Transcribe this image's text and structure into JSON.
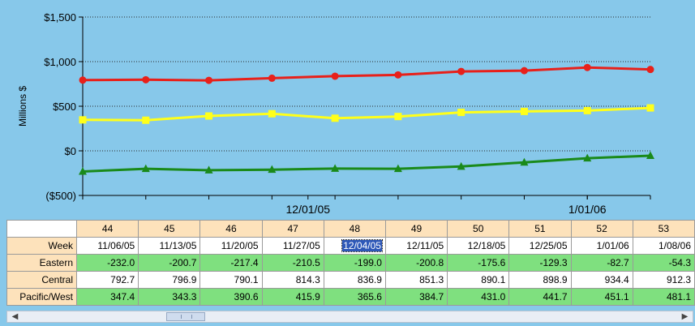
{
  "chart_data": {
    "type": "line",
    "ylabel": "Millions $",
    "ylim": [
      -500,
      1500
    ],
    "yticks": [
      -500,
      0,
      500,
      1000,
      1500
    ],
    "ytick_labels": [
      "($500)",
      "$0",
      "$500",
      "$1,000",
      "$1,500"
    ],
    "grid": true,
    "x": [
      "11/06/05",
      "11/13/05",
      "11/20/05",
      "11/27/05",
      "12/04/05",
      "12/11/05",
      "12/18/05",
      "12/25/05",
      "1/01/06",
      "1/08/06"
    ],
    "x_labels": [
      {
        "label": "12/01/05",
        "at": "12/01/05"
      },
      {
        "label": "1/01/06",
        "at": "1/01/06"
      }
    ],
    "series": [
      {
        "name": "Eastern",
        "color": "#1a8a1a",
        "marker": "triangle",
        "values": [
          -232.0,
          -200.7,
          -217.4,
          -210.5,
          -199.0,
          -200.8,
          -175.6,
          -129.3,
          -82.7,
          -54.3
        ]
      },
      {
        "name": "Central",
        "color": "#e8201a",
        "marker": "circle",
        "values": [
          792.7,
          796.9,
          790.1,
          814.3,
          836.9,
          851.3,
          890.1,
          898.9,
          934.4,
          912.3
        ]
      },
      {
        "name": "Pacific/West",
        "color": "#ffff1a",
        "marker": "square",
        "values": [
          347.4,
          343.3,
          390.6,
          415.9,
          365.6,
          384.7,
          431.0,
          441.7,
          451.1,
          481.1
        ]
      }
    ]
  },
  "table": {
    "week_label": "Week",
    "week_numbers": [
      "44",
      "45",
      "46",
      "47",
      "48",
      "49",
      "50",
      "51",
      "52",
      "53"
    ],
    "dates": [
      "11/06/05",
      "11/13/05",
      "11/20/05",
      "11/27/05",
      "12/04/05",
      "12/11/05",
      "12/18/05",
      "12/25/05",
      "1/01/06",
      "1/08/06"
    ],
    "selected_date_index": 4,
    "rows": [
      {
        "name": "Eastern",
        "values": [
          "-232.0",
          "-200.7",
          "-217.4",
          "-210.5",
          "-199.0",
          "-200.8",
          "-175.6",
          "-129.3",
          "-82.7",
          "-54.3"
        ]
      },
      {
        "name": "Central",
        "values": [
          "792.7",
          "796.9",
          "790.1",
          "814.3",
          "836.9",
          "851.3",
          "890.1",
          "898.9",
          "934.4",
          "912.3"
        ]
      },
      {
        "name": "Pacific/West",
        "values": [
          "347.4",
          "343.3",
          "390.6",
          "415.9",
          "365.6",
          "384.7",
          "431.0",
          "441.7",
          "451.1",
          "481.1"
        ]
      }
    ]
  },
  "scrollbar": {
    "left_icon": "arrow-left-icon",
    "right_icon": "arrow-right-icon",
    "thumb_position": 0.23
  },
  "colors": {
    "background": "#87c8ea",
    "header_cell": "#fde2bb",
    "highlight_row": "#7fe07f",
    "selection": "#2d57b8"
  }
}
